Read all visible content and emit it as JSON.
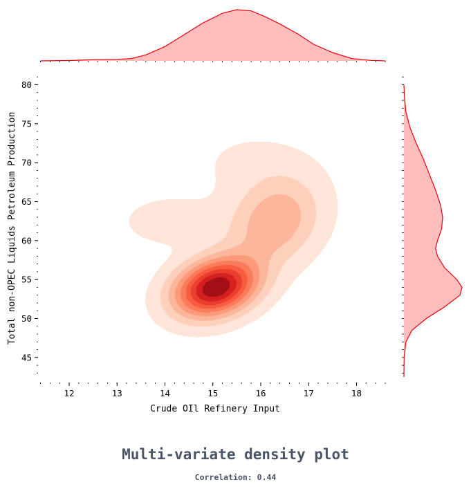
{
  "chart_data": {
    "type": "kde-joint",
    "title": "Multi-variate density plot",
    "subtitle": "Correlation: 0.44",
    "xlabel": "Crude OIl Refinery Input",
    "ylabel": "Total non-OPEC Liquids Petroleum Production",
    "xlim": [
      11.35,
      18.6
    ],
    "ylim": [
      42.5,
      82
    ],
    "x_ticks": [
      12,
      13,
      14,
      15,
      16,
      17,
      18
    ],
    "y_ticks": [
      45,
      50,
      55,
      60,
      65,
      70,
      75,
      80
    ],
    "levels": 9,
    "components": [
      {
        "mean": [
          15.05,
          54.0
        ],
        "sd": [
          0.6,
          2.6
        ],
        "rho": 0.25,
        "weight": 0.55
      },
      {
        "mean": [
          16.3,
          62.5
        ],
        "sd": [
          0.65,
          3.8
        ],
        "rho": 0.2,
        "weight": 0.32
      },
      {
        "mean": [
          14.1,
          62.5
        ],
        "sd": [
          0.7,
          2.2
        ],
        "rho": 0.0,
        "weight": 0.06
      },
      {
        "mean": [
          15.8,
          70.0
        ],
        "sd": [
          0.9,
          3.2
        ],
        "rho": 0.0,
        "weight": 0.07
      }
    ],
    "marginal_x": {
      "points": [
        [
          11.4,
          0.0
        ],
        [
          12.0,
          0.003
        ],
        [
          12.5,
          0.01
        ],
        [
          13.0,
          0.012
        ],
        [
          13.3,
          0.02
        ],
        [
          13.6,
          0.05
        ],
        [
          14.0,
          0.12
        ],
        [
          14.4,
          0.22
        ],
        [
          14.8,
          0.32
        ],
        [
          15.2,
          0.4
        ],
        [
          15.5,
          0.43
        ],
        [
          15.8,
          0.42
        ],
        [
          16.1,
          0.37
        ],
        [
          16.4,
          0.31
        ],
        [
          16.8,
          0.22
        ],
        [
          17.1,
          0.14
        ],
        [
          17.5,
          0.07
        ],
        [
          17.9,
          0.02
        ],
        [
          18.3,
          0.004
        ],
        [
          18.6,
          0.0
        ]
      ]
    },
    "marginal_y": {
      "points": [
        [
          42.5,
          0.0
        ],
        [
          45.0,
          0.002
        ],
        [
          47.0,
          0.02
        ],
        [
          48.5,
          0.08
        ],
        [
          50.0,
          0.22
        ],
        [
          51.5,
          0.4
        ],
        [
          53.0,
          0.55
        ],
        [
          54.0,
          0.57
        ],
        [
          55.0,
          0.52
        ],
        [
          56.5,
          0.4
        ],
        [
          58.0,
          0.33
        ],
        [
          59.0,
          0.31
        ],
        [
          60.0,
          0.33
        ],
        [
          61.5,
          0.37
        ],
        [
          63.0,
          0.38
        ],
        [
          64.5,
          0.36
        ],
        [
          66.5,
          0.31
        ],
        [
          68.5,
          0.25
        ],
        [
          70.5,
          0.19
        ],
        [
          72.5,
          0.12
        ],
        [
          74.5,
          0.06
        ],
        [
          76.5,
          0.02
        ],
        [
          78.5,
          0.005
        ],
        [
          80.0,
          0.0
        ]
      ]
    },
    "colors": {
      "fill": [
        "#fee5d9",
        "#fdd0bc",
        "#fcb69b",
        "#fc9a7a",
        "#fb7c5c",
        "#f85d42",
        "#ea3e2e",
        "#d42020",
        "#a30f15"
      ],
      "marginal_fill": "#ffbdbd",
      "marginal_line": "#e8000b"
    }
  }
}
